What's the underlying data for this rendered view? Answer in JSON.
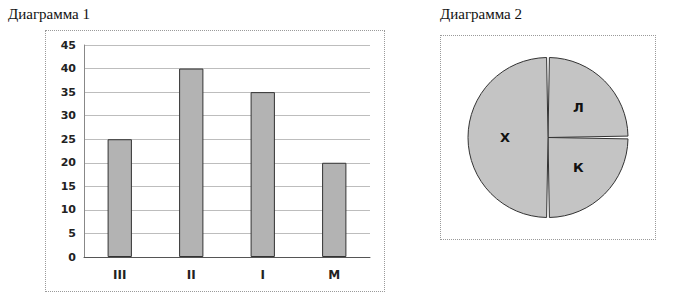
{
  "chart_data": [
    {
      "type": "bar",
      "title": "Диаграмма 1",
      "categories": [
        "III",
        "II",
        "I",
        "М"
      ],
      "values": [
        25,
        40,
        35,
        20
      ],
      "color": "#b3b3b3",
      "ylim": [
        0,
        45
      ],
      "yticks": [
        0,
        5,
        10,
        15,
        20,
        25,
        30,
        35,
        40,
        45
      ],
      "grid": true
    },
    {
      "type": "pie",
      "title": "Диаграмма 2",
      "categories": [
        "Л",
        "К",
        "Х"
      ],
      "values": [
        25,
        25,
        50
      ],
      "colors": [
        "#c4c4c4",
        "#c4c4c4",
        "#c4c4c4"
      ]
    }
  ]
}
